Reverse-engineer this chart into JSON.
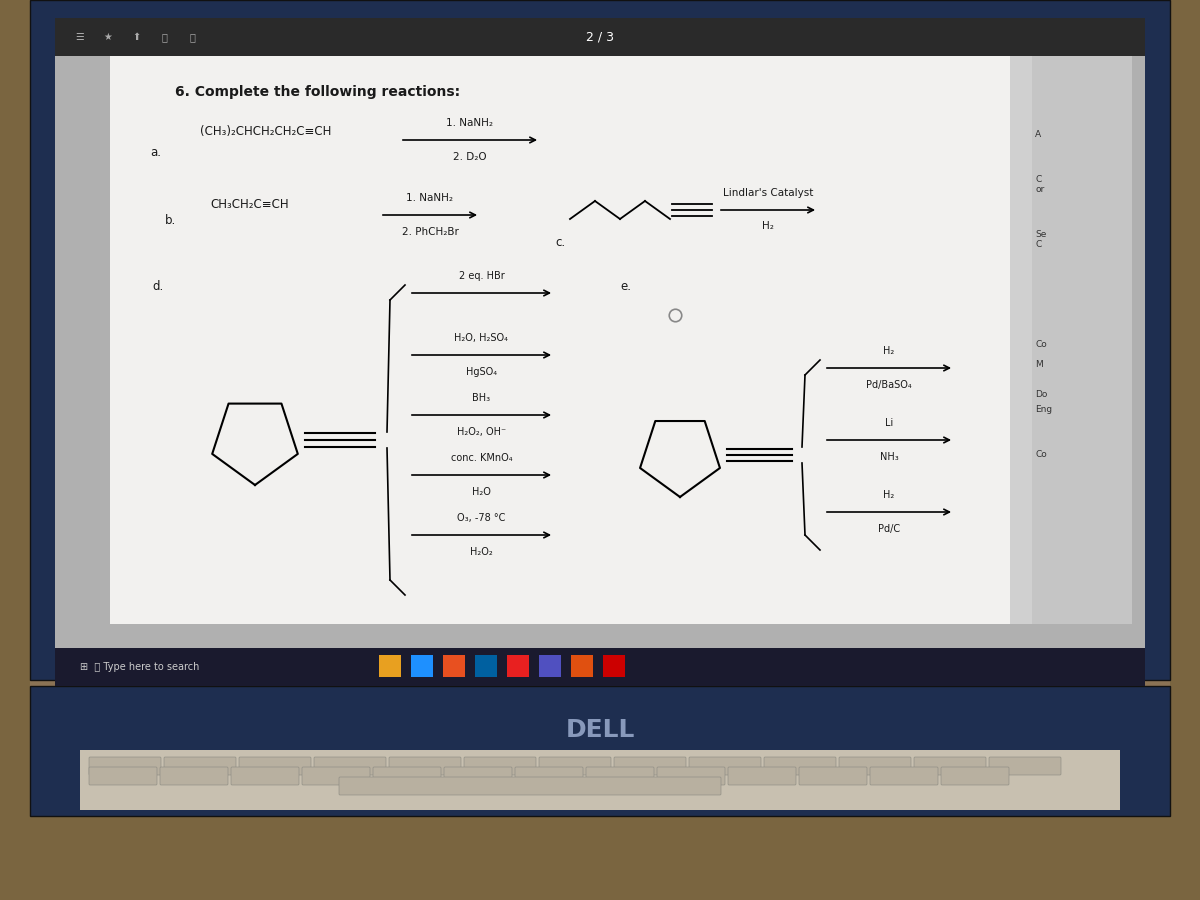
{
  "bg_desk_color": "#8B6914",
  "laptop_body_color": "#2a3f6f",
  "laptop_body_color2": "#1a2d52",
  "screen_bg": "#c8c8c8",
  "paper_white": "#f0eeec",
  "browser_bar_color": "#3a3a3a",
  "taskbar_color": "#1a1a2e",
  "text_color": "#1a1a1a",
  "title_bar_top": "#2d2d2d",
  "title": "6. Complete the following reactions:",
  "section_a_label": "a.",
  "section_a_reactant": "(CH₃)₂CHCH₂CH₂C≡CH",
  "section_a_top": "1. NaNH₂",
  "section_a_bot": "2. D₂O",
  "section_b_label": "b.",
  "section_b_reactant": "CH₃CH₂C≡CH",
  "section_b_top": "1. NaNH₂",
  "section_b_bot": "2. PhCH₂Br",
  "section_c_label": "c.",
  "section_c_top": "Lindlar's Catalyst",
  "section_c_bot": "H₂",
  "section_d_label": "d.",
  "section_d_reactions": [
    {
      "top": "2 eq. HBr",
      "bot": ""
    },
    {
      "top": "H₂O, H₂SO₄",
      "bot": "HgSO₄"
    },
    {
      "top": "BH₃",
      "bot": "H₂O₂, OH⁻"
    },
    {
      "top": "conc. KMnO₄",
      "bot": "H₂O"
    },
    {
      "top": "O₃, -78 °C",
      "bot": "H₂O₂"
    }
  ],
  "section_e_label": "e.",
  "section_e_reactions": [
    {
      "top": "H₂",
      "bot": "Pd/BaSO₄"
    },
    {
      "top": "Li",
      "bot": "NH₃"
    },
    {
      "top": "H₂",
      "bot": "Pd/C"
    }
  ],
  "page_num": "2 / 3"
}
